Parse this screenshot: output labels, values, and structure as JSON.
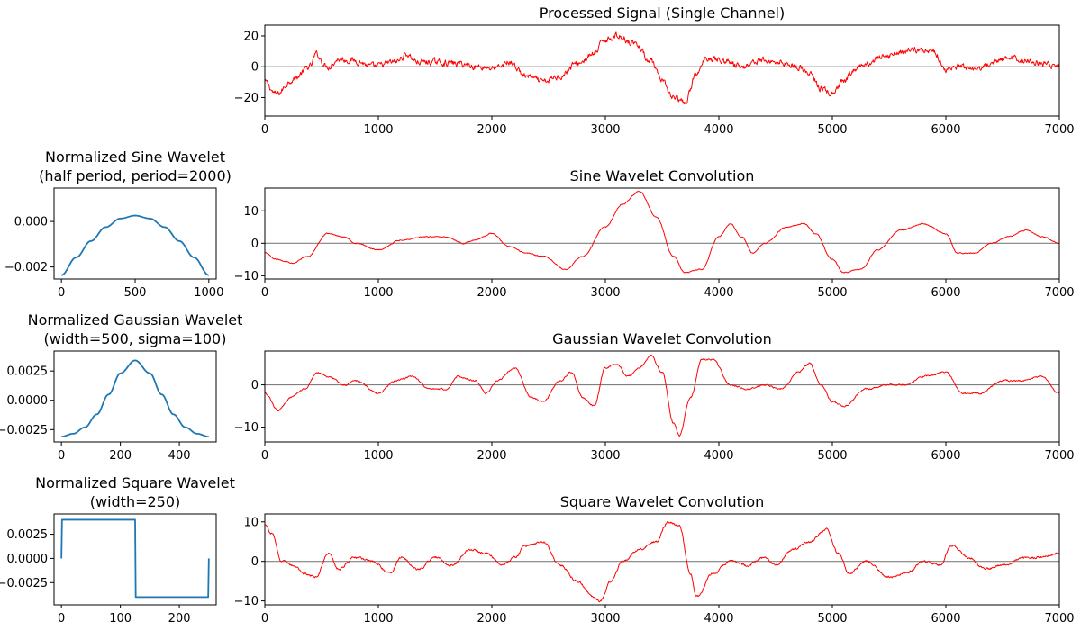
{
  "figure": {
    "colors": {
      "signal": "#ff0000",
      "wavelet": "#1f77b4",
      "zero_line": "#808080"
    }
  },
  "chart_data": [
    {
      "id": "processed",
      "type": "line",
      "title": "Processed Signal (Single Channel)",
      "xlim": [
        0,
        7000
      ],
      "ylim": [
        -32,
        27
      ],
      "xticks": [
        0,
        1000,
        2000,
        3000,
        4000,
        5000,
        6000,
        7000
      ],
      "yticks": [
        -20,
        0,
        20
      ],
      "ytick_labels": [
        "−20",
        "0",
        "20"
      ],
      "zero_line": true,
      "series": [
        {
          "color": "#ff0000",
          "noise": 3.2,
          "x": [
            0,
            100,
            250,
            400,
            450,
            550,
            650,
            800,
            950,
            1150,
            1250,
            1350,
            1500,
            1700,
            1900,
            2050,
            2150,
            2300,
            2450,
            2600,
            2750,
            2900,
            3000,
            3100,
            3250,
            3400,
            3500,
            3600,
            3700,
            3800,
            3900,
            4050,
            4200,
            4350,
            4550,
            4700,
            4800,
            4900,
            5000,
            5100,
            5200,
            5300,
            5450,
            5600,
            5750,
            5900,
            6000,
            6100,
            6250,
            6400,
            6550,
            6700,
            6850,
            7000
          ],
          "y": [
            -10,
            -18,
            -8,
            0,
            8,
            0,
            5,
            4,
            0,
            3,
            8,
            3,
            3,
            2,
            0,
            -1,
            3,
            -6,
            -10,
            -6,
            2,
            8,
            18,
            20,
            16,
            4,
            -10,
            -20,
            -24,
            -5,
            6,
            4,
            0,
            4,
            3,
            0,
            -5,
            -14,
            -18,
            -10,
            -2,
            2,
            6,
            10,
            11,
            10,
            -2,
            0,
            -3,
            2,
            6,
            4,
            2,
            0
          ]
        }
      ]
    },
    {
      "id": "sine-wavelet",
      "type": "line",
      "title": "Normalized Sine Wavelet",
      "subtitle": "(half period, period=2000)",
      "xlim": [
        -50,
        1050
      ],
      "ylim": [
        -0.00253,
        0.00147
      ],
      "xticks": [
        0,
        500,
        1000
      ],
      "yticks": [
        -0.002,
        0.0
      ],
      "ytick_labels": [
        "−0.002",
        "0.000"
      ],
      "zero_line": false,
      "series": [
        {
          "color": "#1f77b4",
          "x": [
            0,
            100,
            200,
            300,
            400,
            500,
            600,
            700,
            800,
            900,
            1000
          ],
          "y": [
            -0.00236,
            -0.00158,
            -0.00086,
            -0.00025,
            0.00013,
            0.00026,
            0.00013,
            -0.00025,
            -0.00086,
            -0.00158,
            -0.00236
          ]
        }
      ]
    },
    {
      "id": "sine-conv",
      "type": "line",
      "title": "Sine Wavelet Convolution",
      "xlim": [
        0,
        7000
      ],
      "ylim": [
        -11,
        17
      ],
      "xticks": [
        0,
        1000,
        2000,
        3000,
        4000,
        5000,
        6000,
        7000
      ],
      "yticks": [
        -10,
        0,
        10
      ],
      "ytick_labels": [
        "−10",
        "0",
        "10"
      ],
      "zero_line": true,
      "series": [
        {
          "color": "#ff0000",
          "noise": 0.25,
          "x": [
            0,
            100,
            250,
            380,
            550,
            700,
            800,
            1000,
            1200,
            1400,
            1600,
            1750,
            1850,
            2000,
            2150,
            2300,
            2450,
            2650,
            2800,
            3000,
            3150,
            3300,
            3450,
            3600,
            3700,
            3850,
            4000,
            4100,
            4200,
            4300,
            4400,
            4600,
            4750,
            4850,
            5000,
            5100,
            5250,
            5400,
            5600,
            5800,
            6000,
            6100,
            6250,
            6400,
            6550,
            6700,
            6850,
            7000
          ],
          "y": [
            -3,
            -5,
            -6,
            -4,
            3,
            2,
            0,
            -2,
            1,
            2,
            2,
            0,
            1,
            3,
            -1,
            -3,
            -4,
            -8,
            -4,
            5,
            12,
            16,
            8,
            -4,
            -9,
            -8,
            2,
            6,
            2,
            -3,
            0,
            5,
            6,
            3,
            -5,
            -9,
            -8,
            -2,
            4,
            6,
            3,
            -3,
            -3,
            0,
            2,
            4,
            2,
            0
          ]
        }
      ]
    },
    {
      "id": "gaussian-wavelet",
      "type": "line",
      "title": "Normalized Gaussian Wavelet",
      "subtitle": "(width=500, sigma=100)",
      "xlim": [
        -25,
        525
      ],
      "ylim": [
        -0.00355,
        0.0042
      ],
      "xticks": [
        0,
        200,
        400
      ],
      "yticks": [
        -0.0025,
        0.0,
        0.0025
      ],
      "ytick_labels": [
        "−0.0025",
        "0.0000",
        "0.0025"
      ],
      "zero_line": false,
      "series": [
        {
          "color": "#1f77b4",
          "x": [
            0,
            40,
            80,
            120,
            160,
            200,
            250,
            300,
            340,
            380,
            420,
            460,
            500
          ],
          "y": [
            -0.0031,
            -0.00285,
            -0.0023,
            -0.0012,
            0.0005,
            0.0023,
            0.0034,
            0.0023,
            0.0005,
            -0.0012,
            -0.0023,
            -0.00285,
            -0.0031
          ]
        }
      ]
    },
    {
      "id": "gaussian-conv",
      "type": "line",
      "title": "Gaussian Wavelet Convolution",
      "xlim": [
        0,
        7000
      ],
      "ylim": [
        -13.5,
        8
      ],
      "xticks": [
        0,
        1000,
        2000,
        3000,
        4000,
        5000,
        6000,
        7000
      ],
      "yticks": [
        -10,
        0
      ],
      "ytick_labels": [
        "−10",
        "0"
      ],
      "zero_line": true,
      "series": [
        {
          "color": "#ff0000",
          "noise": 0.3,
          "x": [
            0,
            120,
            230,
            350,
            470,
            560,
            700,
            800,
            1000,
            1150,
            1300,
            1450,
            1600,
            1700,
            1850,
            1950,
            2050,
            2200,
            2350,
            2450,
            2600,
            2700,
            2800,
            2900,
            3000,
            3100,
            3200,
            3300,
            3400,
            3500,
            3600,
            3650,
            3750,
            3850,
            3950,
            4100,
            4250,
            4400,
            4550,
            4700,
            4800,
            4900,
            5000,
            5100,
            5300,
            5500,
            5650,
            5800,
            6000,
            6150,
            6300,
            6500,
            6650,
            6850,
            7000
          ],
          "y": [
            -2,
            -6,
            -3,
            -1,
            3,
            2,
            0,
            1,
            -2,
            1,
            2,
            -1,
            -1,
            2,
            1,
            -2,
            1,
            4,
            -3,
            -4,
            1,
            3,
            -3,
            -5,
            4,
            5,
            2,
            4,
            7,
            3,
            -9,
            -12,
            -3,
            6,
            6,
            0,
            -1,
            0,
            -1,
            3,
            5,
            0,
            -4,
            -5,
            -1,
            0,
            0,
            2,
            3,
            -2,
            -2,
            1,
            1,
            2,
            -2
          ]
        }
      ]
    },
    {
      "id": "square-wavelet",
      "type": "line",
      "title": "Normalized Square Wavelet",
      "subtitle": "(width=250)",
      "xlim": [
        -12.5,
        262.5
      ],
      "ylim": [
        -0.0048,
        0.0046
      ],
      "xticks": [
        0,
        100,
        200
      ],
      "yticks": [
        -0.0025,
        0.0,
        0.0025
      ],
      "ytick_labels": [
        "−0.0025",
        "0.0000",
        "0.0025"
      ],
      "zero_line": false,
      "series": [
        {
          "color": "#1f77b4",
          "x": [
            0,
            1,
            125,
            126,
            249,
            250
          ],
          "y": [
            0.0,
            0.004,
            0.004,
            -0.004,
            -0.004,
            0.0
          ]
        }
      ]
    },
    {
      "id": "square-conv",
      "type": "line",
      "title": "Square Wavelet Convolution",
      "xlim": [
        0,
        7000
      ],
      "ylim": [
        -11,
        12
      ],
      "xticks": [
        0,
        1000,
        2000,
        3000,
        4000,
        5000,
        6000,
        7000
      ],
      "yticks": [
        -10,
        0,
        10
      ],
      "ytick_labels": [
        "−10",
        "0",
        "10"
      ],
      "zero_line": true,
      "series": [
        {
          "color": "#ff0000",
          "noise": 0.45,
          "x": [
            0,
            60,
            150,
            250,
            350,
            450,
            560,
            650,
            800,
            950,
            1100,
            1200,
            1350,
            1500,
            1650,
            1800,
            1950,
            2100,
            2200,
            2300,
            2450,
            2600,
            2750,
            2900,
            2950,
            3050,
            3150,
            3300,
            3450,
            3550,
            3650,
            3750,
            3800,
            3950,
            4100,
            4250,
            4400,
            4500,
            4650,
            4800,
            4950,
            5050,
            5150,
            5300,
            5500,
            5650,
            5800,
            5950,
            6050,
            6200,
            6350,
            6500,
            6700,
            6850,
            7000
          ],
          "y": [
            9,
            7,
            0,
            -1,
            -3,
            -4,
            2,
            -2,
            1,
            0,
            -3,
            1,
            -2,
            1,
            -1,
            3,
            2,
            -1,
            1,
            4,
            5,
            -1,
            -5,
            -9,
            -10,
            -5,
            0,
            3,
            5,
            10,
            9,
            -3,
            -9,
            -3,
            0,
            -1,
            1,
            -1,
            3,
            5,
            8,
            2,
            -3,
            0,
            -4,
            -3,
            0,
            -1,
            4,
            1,
            -2,
            -1,
            1,
            1,
            2
          ]
        }
      ]
    }
  ]
}
